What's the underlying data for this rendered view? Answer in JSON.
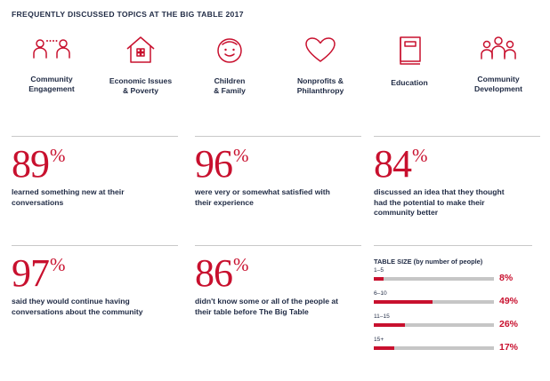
{
  "title": "FREQUENTLY DISCUSSED TOPICS AT THE BIG TABLE 2017",
  "accent_color": "#c8102e",
  "topics": [
    {
      "icon": "community-people-icon",
      "label": "Community\nEngagement"
    },
    {
      "icon": "house-icon",
      "label": "Economic Issues\n& Poverty"
    },
    {
      "icon": "child-face-icon",
      "label": "Children\n& Family"
    },
    {
      "icon": "heart-icon",
      "label": "Nonprofits &\nPhilanthropy"
    },
    {
      "icon": "book-icon",
      "label": "Education"
    },
    {
      "icon": "group-icon",
      "label": "Community\nDevelopment"
    }
  ],
  "stats": [
    {
      "value": "89",
      "unit": "%",
      "text": "learned something new at their conversations"
    },
    {
      "value": "96",
      "unit": "%",
      "text": "were very or somewhat satisfied with their experience"
    },
    {
      "value": "84",
      "unit": "%",
      "text": "discussed an idea that they thought had the potential to make their community better"
    },
    {
      "value": "97",
      "unit": "%",
      "text": "said they would continue having conversations about the community"
    },
    {
      "value": "86",
      "unit": "%",
      "text": "didn't know some or all of the people at their table before The Big Table"
    }
  ],
  "table_size": {
    "title": "TABLE SIZE (by number of people)",
    "rows": [
      {
        "label": "1–5",
        "percent": 8,
        "value_text": "8%"
      },
      {
        "label": "6–10",
        "percent": 49,
        "value_text": "49%"
      },
      {
        "label": "11–15",
        "percent": 26,
        "value_text": "26%"
      },
      {
        "label": "15+",
        "percent": 17,
        "value_text": "17%"
      }
    ]
  }
}
